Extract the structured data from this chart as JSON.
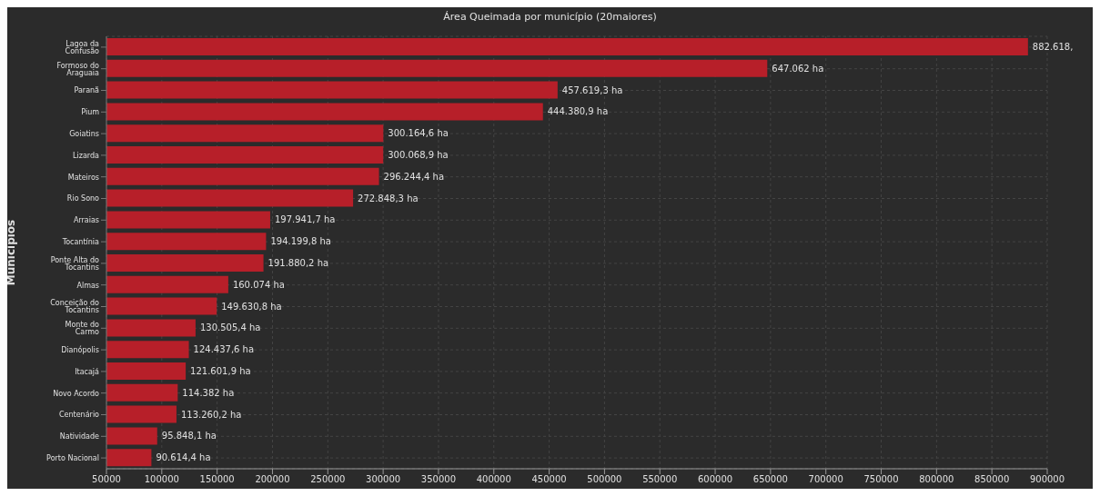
{
  "chart_data": {
    "type": "bar",
    "orientation": "horizontal",
    "title": "Área Queimada por município (20maiores)",
    "ylabel": "Municípios",
    "categories": [
      "Lagoa da Confusão",
      "Formoso do Araguaia",
      "Paranã",
      "Pium",
      "Goiatins",
      "Lizarda",
      "Mateiros",
      "Rio Sono",
      "Arraias",
      "Tocantínia",
      "Ponte Alta do Tocantins",
      "Almas",
      "Conceição do Tocantins",
      "Monte do Carmo",
      "Dianópolis",
      "Itacajá",
      "Novo Acordo",
      "Centenário",
      "Natividade",
      "Porto Nacional"
    ],
    "values": [
      882618,
      647062,
      457619.3,
      444380.9,
      300164.6,
      300068.9,
      296244.4,
      272848.3,
      197941.7,
      194199.8,
      191880.2,
      160074,
      149630.8,
      130505.4,
      124437.6,
      121601.9,
      114382,
      113260.2,
      95848.1,
      90614.4
    ],
    "value_labels": [
      "882.618,",
      "647.062 ha",
      "457.619,3 ha",
      "444.380,9 ha",
      "300.164,6 ha",
      "300.068,9 ha",
      "296.244,4 ha",
      "272.848,3 ha",
      "197.941,7 ha",
      "194.199,8 ha",
      "191.880,2 ha",
      "160.074 ha",
      "149.630,8 ha",
      "130.505,4 ha",
      "124.437,6 ha",
      "121.601,9 ha",
      "114.382 ha",
      "113.260,2 ha",
      "95.848,1 ha",
      "90.614,4 ha"
    ],
    "color": "#b71f29",
    "xlim": [
      50000,
      900000
    ],
    "xticks": [
      50000,
      100000,
      150000,
      200000,
      250000,
      300000,
      350000,
      400000,
      450000,
      500000,
      550000,
      600000,
      650000,
      700000,
      750000,
      800000,
      850000,
      900000
    ],
    "grid": true
  }
}
